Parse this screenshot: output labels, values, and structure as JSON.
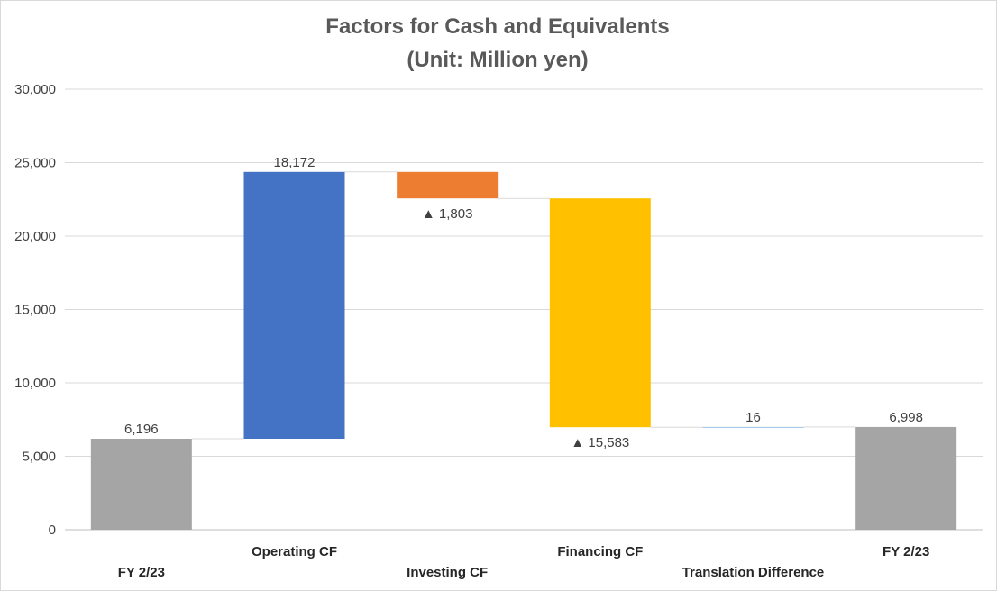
{
  "chart_data": {
    "type": "bar",
    "subtype": "waterfall",
    "title": "Factors for Cash and Equivalents",
    "subtitle": "(Unit: Million yen)",
    "ylim": [
      0,
      30000
    ],
    "yticks": [
      0,
      5000,
      10000,
      15000,
      20000,
      25000,
      30000
    ],
    "ytick_labels": [
      "0",
      "5,000",
      "10,000",
      "15,000",
      "20,000",
      "25,000",
      "30,000"
    ],
    "grid": true,
    "categories": [
      "FY 2/23",
      "Operating CF",
      "Investing CF",
      "Financing CF",
      "Translation Difference",
      "FY 2/23"
    ],
    "values": [
      6196,
      18172,
      -1803,
      -15583,
      16,
      6998
    ],
    "kinds": [
      "total",
      "delta",
      "delta",
      "delta",
      "delta",
      "total"
    ],
    "data_labels": [
      "6,196",
      "18,172",
      "▲ 1,803",
      "▲ 15,583",
      "16",
      "6,998"
    ],
    "colors": [
      "#a5a5a5",
      "#4472c4",
      "#ed7d31",
      "#ffc000",
      "#5b9bd5",
      "#a5a5a5"
    ]
  }
}
